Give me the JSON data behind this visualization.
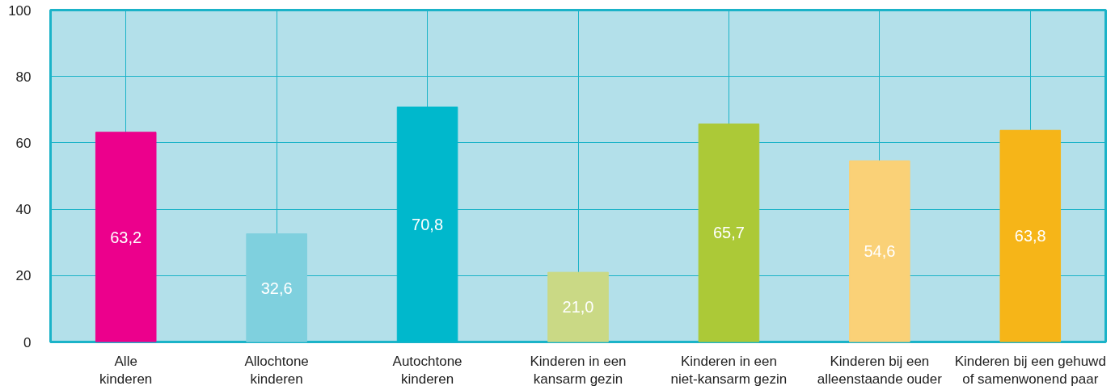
{
  "chart_data": {
    "type": "bar",
    "categories": [
      "Alle kinderen",
      "Allochtone kinderen",
      "Autochtone kinderen",
      "Kinderen in een kansarm gezin",
      "Kinderen in een niet-kansarm gezin",
      "Kinderen bij een alleenstaande ouder",
      "Kinderen bij een gehuwd of samenwonend paar"
    ],
    "values": [
      63.2,
      32.6,
      70.8,
      21.0,
      65.7,
      54.6,
      63.8
    ],
    "colors": [
      "#ec008c",
      "#7fd0de",
      "#00b8cc",
      "#cad985",
      "#acc937",
      "#fad177",
      "#f6b518"
    ],
    "value_labels": [
      "63,2",
      "32,6",
      "70,8",
      "21,0",
      "65,7",
      "54,6",
      "63,8"
    ],
    "ylim": [
      0,
      100
    ],
    "yticks": [
      0,
      20,
      40,
      60,
      80,
      100
    ],
    "grid": true
  }
}
